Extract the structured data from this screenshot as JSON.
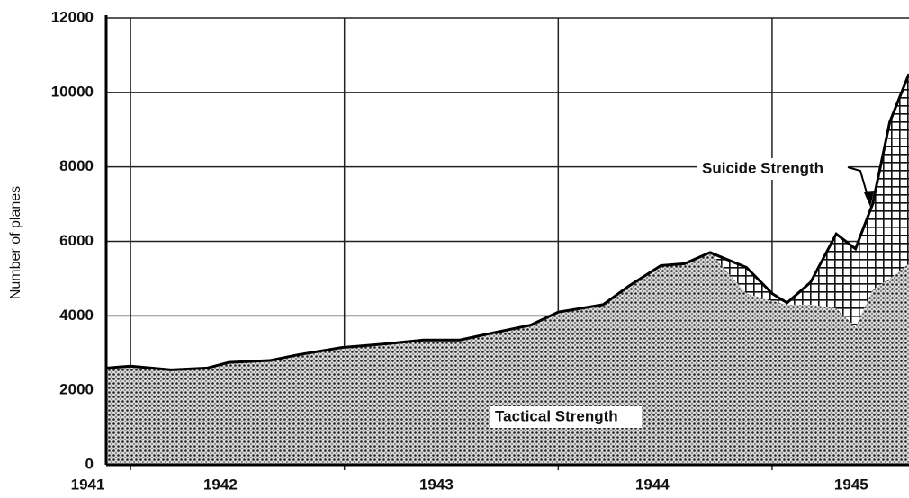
{
  "chart_data": {
    "type": "stacked_area",
    "y_label": "Number of planes",
    "x": [
      1941.89,
      1942.0,
      1942.19,
      1942.36,
      1942.46,
      1942.65,
      1942.78,
      1942.99,
      1943.2,
      1943.37,
      1943.54,
      1943.66,
      1943.87,
      1944.0,
      1944.21,
      1944.33,
      1944.48,
      1944.59,
      1944.71,
      1944.88,
      1945.0,
      1945.07,
      1945.18,
      1945.3,
      1945.39,
      1945.47,
      1945.55,
      1945.64
    ],
    "series": [
      {
        "name": "Tactical Strength",
        "color": "#000000",
        "pattern": "dots",
        "values": [
          2600,
          2650,
          2550,
          2600,
          2750,
          2800,
          2950,
          3150,
          3250,
          3350,
          3350,
          3500,
          3750,
          4100,
          4300,
          4800,
          5350,
          5400,
          5700,
          4600,
          4400,
          4300,
          4300,
          4200,
          3700,
          4700,
          5000,
          5400
        ]
      },
      {
        "name": "Suicide Strength",
        "color": "#000000",
        "pattern": "crosshatch",
        "values": [
          0,
          0,
          0,
          0,
          0,
          0,
          0,
          0,
          0,
          0,
          0,
          0,
          0,
          0,
          0,
          0,
          0,
          0,
          0,
          700,
          200,
          50,
          600,
          2000,
          2100,
          2300,
          4200,
          5100
        ]
      }
    ],
    "xlim": [
      1941.886,
      1945.64
    ],
    "xticks": [
      {
        "value": 1941.8,
        "label": "1941"
      },
      {
        "value": 1942.42,
        "label": "1942"
      },
      {
        "value": 1943.43,
        "label": "1943"
      },
      {
        "value": 1944.44,
        "label": "1944"
      },
      {
        "value": 1945.37,
        "label": "1945"
      }
    ],
    "xgrid": [
      1942,
      1943,
      1944,
      1945
    ],
    "ylim": [
      0,
      12000
    ],
    "yticks": [
      0,
      2000,
      4000,
      6000,
      8000,
      10000,
      12000
    ],
    "grid": true
  }
}
